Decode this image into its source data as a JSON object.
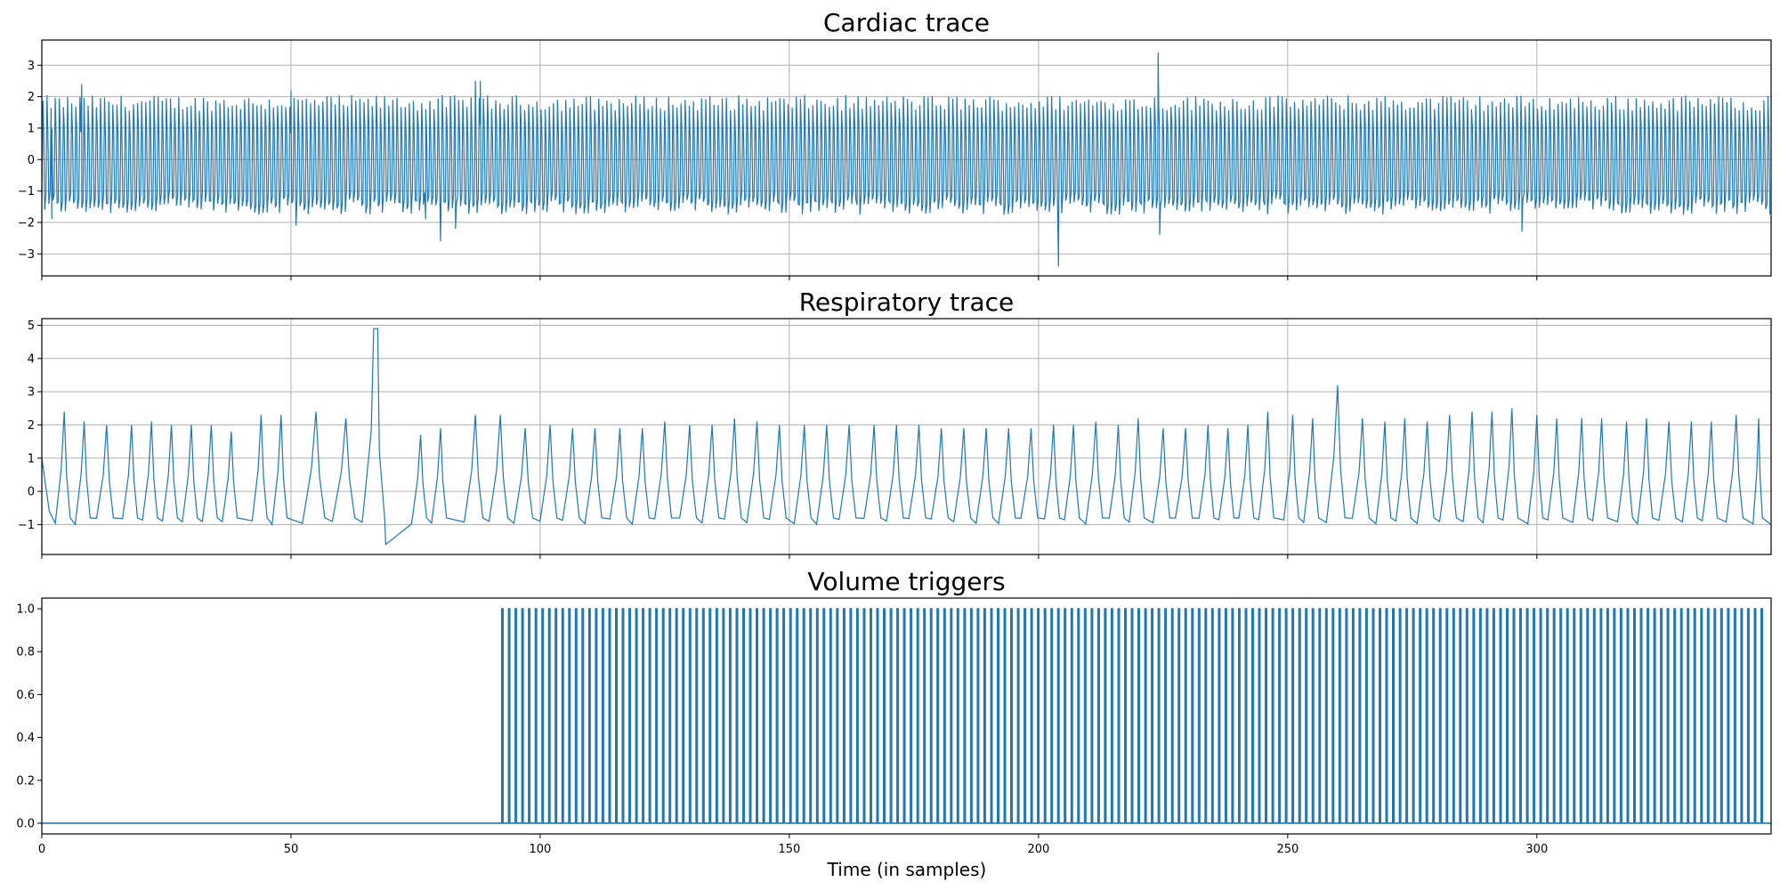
{
  "colors": {
    "line": "#1f77b4",
    "grid": "#b0b0b0",
    "axes": "#000000"
  },
  "xlabel": "Time (in samples)",
  "chart_data": [
    {
      "type": "line",
      "title": "Cardiac trace",
      "grid": true,
      "xlim": [
        0,
        347
      ],
      "ylim": [
        -3.7,
        3.8
      ],
      "yticks": [
        -3,
        -2,
        -1,
        0,
        1,
        2,
        3
      ],
      "xticks": [
        0,
        50,
        100,
        150,
        200,
        250,
        300
      ],
      "show_xtick_labels": false,
      "signal": {
        "kind": "oscillation",
        "x_start": 0,
        "x_end": 347,
        "approx_cycles": 420,
        "peak_level": 1.8,
        "trough_level": -1.5,
        "notable_points": [
          {
            "x": 2,
            "y": -1.9
          },
          {
            "x": 8,
            "y": 2.4
          },
          {
            "x": 50,
            "y": 2.2
          },
          {
            "x": 51,
            "y": -2.1
          },
          {
            "x": 77,
            "y": -1.9
          },
          {
            "x": 80,
            "y": -2.6
          },
          {
            "x": 83,
            "y": -2.2
          },
          {
            "x": 87,
            "y": 2.5
          },
          {
            "x": 88,
            "y": 2.5
          },
          {
            "x": 204,
            "y": -3.4
          },
          {
            "x": 224,
            "y": 3.4
          },
          {
            "x": 224.3,
            "y": -2.4
          },
          {
            "x": 297,
            "y": -2.3
          }
        ]
      }
    },
    {
      "type": "line",
      "title": "Respiratory trace",
      "grid": true,
      "xlim": [
        0,
        347
      ],
      "ylim": [
        -1.9,
        5.2
      ],
      "yticks": [
        -1,
        0,
        1,
        2,
        3,
        4,
        5
      ],
      "xticks": [
        0,
        50,
        100,
        150,
        200,
        250,
        300
      ],
      "show_xtick_labels": false,
      "signal": {
        "kind": "breaths",
        "baseline": -0.9,
        "peaks": [
          [
            4.5,
            2.4
          ],
          [
            8.5,
            2.1
          ],
          [
            13,
            2.0
          ],
          [
            18,
            2.0
          ],
          [
            22,
            2.1
          ],
          [
            26,
            2.0
          ],
          [
            30,
            2.0
          ],
          [
            34,
            2.0
          ],
          [
            38,
            1.8
          ],
          [
            44,
            2.3
          ],
          [
            48,
            2.3
          ],
          [
            55,
            2.4
          ],
          [
            61,
            2.2
          ],
          [
            67,
            4.9
          ],
          [
            76,
            1.7
          ],
          [
            80,
            1.9
          ],
          [
            87,
            2.3
          ],
          [
            92,
            2.3
          ],
          [
            97,
            1.9
          ],
          [
            102,
            2.0
          ],
          [
            106.5,
            1.9
          ],
          [
            111,
            1.9
          ],
          [
            116,
            1.9
          ],
          [
            120.5,
            1.9
          ],
          [
            125,
            2.1
          ],
          [
            130,
            2.0
          ],
          [
            134.5,
            2.0
          ],
          [
            139,
            2.2
          ],
          [
            143.5,
            2.1
          ],
          [
            148,
            2.0
          ],
          [
            153,
            2.0
          ],
          [
            157.5,
            2.0
          ],
          [
            162,
            2.0
          ],
          [
            167,
            2.0
          ],
          [
            171.5,
            2.0
          ],
          [
            176,
            2.0
          ],
          [
            180.5,
            1.9
          ],
          [
            185,
            1.9
          ],
          [
            189.5,
            1.9
          ],
          [
            194,
            1.9
          ],
          [
            198.5,
            1.9
          ],
          [
            203,
            2.0
          ],
          [
            207,
            2.0
          ],
          [
            211.5,
            2.1
          ],
          [
            216,
            2.0
          ],
          [
            220,
            2.2
          ],
          [
            225,
            1.9
          ],
          [
            229.5,
            1.9
          ],
          [
            234,
            2.0
          ],
          [
            238,
            1.9
          ],
          [
            242,
            2.0
          ],
          [
            246,
            2.4
          ],
          [
            251,
            2.3
          ],
          [
            255,
            2.2
          ],
          [
            260,
            3.2
          ],
          [
            265,
            2.2
          ],
          [
            269.5,
            2.1
          ],
          [
            273.5,
            2.2
          ],
          [
            278,
            2.1
          ],
          [
            282.5,
            2.3
          ],
          [
            287,
            2.4
          ],
          [
            291,
            2.4
          ],
          [
            295,
            2.5
          ],
          [
            300,
            2.3
          ],
          [
            304,
            2.2
          ],
          [
            309,
            2.2
          ],
          [
            313,
            2.2
          ],
          [
            318,
            2.1
          ],
          [
            322,
            2.2
          ],
          [
            326.5,
            2.1
          ],
          [
            331,
            2.1
          ],
          [
            335,
            2.1
          ],
          [
            340,
            2.3
          ],
          [
            344.5,
            2.2
          ]
        ],
        "minimum": {
          "x": 69,
          "y": -1.6
        }
      }
    },
    {
      "type": "line",
      "title": "Volume triggers",
      "grid": false,
      "xlim": [
        0,
        347
      ],
      "ylim": [
        -0.05,
        1.05
      ],
      "yticks": [
        0.0,
        0.2,
        0.4,
        0.6,
        0.8,
        1.0
      ],
      "ytick_labels": [
        "0.0",
        "0.2",
        "0.4",
        "0.6",
        "0.8",
        "1.0"
      ],
      "xticks": [
        0,
        50,
        100,
        150,
        200,
        250,
        300
      ],
      "xtick_labels": [
        "0",
        "50",
        "100",
        "150",
        "200",
        "250",
        "300"
      ],
      "show_xtick_labels": true,
      "pulses": {
        "first": 92.3,
        "last": 345.0,
        "count": 189,
        "low": 0,
        "high": 1
      }
    }
  ]
}
